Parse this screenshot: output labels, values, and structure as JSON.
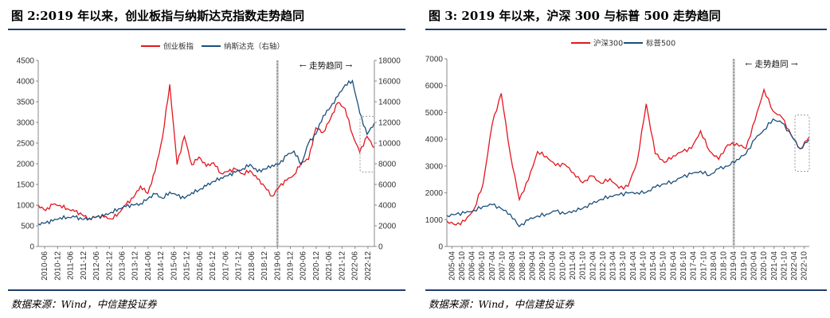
{
  "left": {
    "title": "图 2:2019 年以来，创业板指与纳斯达克指数走势趋同",
    "source": "数据来源：Wind，中信建投证券",
    "chart_data": {
      "type": "line",
      "legend": [
        "创业板指",
        "纳斯达克（右轴）"
      ],
      "annotation": "← 走势趋同 →",
      "y_left_ticks": [
        "0",
        "500",
        "1000",
        "1500",
        "2000",
        "2500",
        "3000",
        "3500",
        "4000",
        "4500"
      ],
      "y_right_ticks": [
        "0",
        "2000",
        "4000",
        "6000",
        "8000",
        "10000",
        "12000",
        "14000",
        "16000",
        "18000"
      ],
      "ylim_left": [
        0,
        4500
      ],
      "ylim_right": [
        0,
        18000
      ],
      "x_ticks": [
        "2010-06",
        "2010-12",
        "2011-06",
        "2011-12",
        "2012-06",
        "2012-12",
        "2013-06",
        "2013-12",
        "2014-06",
        "2014-12",
        "2015-06",
        "2015-12",
        "2016-06",
        "2016-12",
        "2017-06",
        "2017-12",
        "2018-06",
        "2018-12",
        "2019-06",
        "2019-12",
        "2020-06",
        "2020-12",
        "2021-06",
        "2021-12",
        "2022-06",
        "2022-12"
      ],
      "series": [
        {
          "name": "创业板指",
          "axis": "left",
          "color": "#e3161f",
          "values": [
            1000,
            900,
            1050,
            1000,
            880,
            810,
            760,
            700,
            760,
            720,
            640,
            770,
            1000,
            1200,
            1500,
            1300,
            1800,
            2600,
            3900,
            2000,
            2700,
            2000,
            2150,
            1900,
            2000,
            1780,
            1850,
            1900,
            1750,
            1800,
            1600,
            1450,
            1250,
            1480,
            1600,
            1700,
            2000,
            2100,
            2900,
            2800,
            3100,
            3450,
            3300,
            2700,
            2300,
            2700,
            2400
          ]
        },
        {
          "name": "纳斯达克（右轴）",
          "axis": "right",
          "color": "#1b4f7a",
          "values": [
            2200,
            2400,
            2600,
            2800,
            2700,
            2700,
            2600,
            2850,
            3000,
            3000,
            3200,
            3500,
            3800,
            4100,
            4300,
            4700,
            5000,
            4500,
            5200,
            5000,
            4800,
            5300,
            5400,
            5700,
            6200,
            6700,
            7000,
            7300,
            7500,
            7800,
            7100,
            7500,
            8000,
            8100,
            8800,
            9100,
            7800,
            10000,
            11000,
            12800,
            13500,
            14400,
            15500,
            16000,
            13000,
            11000,
            12000
          ]
        }
      ],
      "shaded_start": "2019-06",
      "highlight_box": true
    }
  },
  "right": {
    "title": "图 3: 2019 年以来，沪深 300 与标普 500 走势趋同",
    "source": "数据来源：Wind，中信建投证券",
    "chart_data": {
      "type": "line",
      "legend": [
        "沪深300",
        "标普500"
      ],
      "annotation": "← 走势趋同 →",
      "y_ticks": [
        "0",
        "1000",
        "2000",
        "3000",
        "4000",
        "5000",
        "6000",
        "7000"
      ],
      "ylim": [
        0,
        7000
      ],
      "x_ticks": [
        "2005-04",
        "2005-10",
        "2006-04",
        "2006-10",
        "2007-04",
        "2007-10",
        "2008-04",
        "2008-10",
        "2009-04",
        "2009-10",
        "2010-04",
        "2010-10",
        "2011-04",
        "2011-10",
        "2012-04",
        "2012-10",
        "2013-04",
        "2013-10",
        "2014-04",
        "2014-10",
        "2015-04",
        "2015-10",
        "2016-04",
        "2016-10",
        "2017-04",
        "2017-10",
        "2018-04",
        "2018-10",
        "2019-04",
        "2019-10",
        "2020-04",
        "2020-10",
        "2021-04",
        "2021-10",
        "2022-04",
        "2022-10"
      ],
      "series": [
        {
          "name": "沪深300",
          "color": "#e3161f",
          "values": [
            950,
            850,
            1000,
            1400,
            2300,
            4500,
            5700,
            3500,
            1800,
            2500,
            3500,
            3300,
            3000,
            3100,
            2800,
            2400,
            2600,
            2300,
            2500,
            2200,
            2300,
            3200,
            5300,
            3400,
            3100,
            3400,
            3600,
            3700,
            4300,
            3500,
            3200,
            3800,
            3900,
            3700,
            4700,
            5800,
            5000,
            4800,
            4200,
            3700,
            4100
          ]
        },
        {
          "name": "标普500",
          "color": "#1b4f7a",
          "values": [
            1150,
            1250,
            1300,
            1350,
            1450,
            1500,
            1400,
            1250,
            800,
            1000,
            1100,
            1150,
            1300,
            1250,
            1400,
            1450,
            1550,
            1700,
            1850,
            1950,
            2050,
            2050,
            2000,
            2150,
            2300,
            2450,
            2650,
            2750,
            2800,
            2600,
            2850,
            3000,
            3300,
            3500,
            4000,
            4300,
            4700,
            4600,
            4200,
            3700,
            4000
          ]
        }
      ],
      "shaded_start": "2019-04",
      "highlight_box": true
    }
  }
}
